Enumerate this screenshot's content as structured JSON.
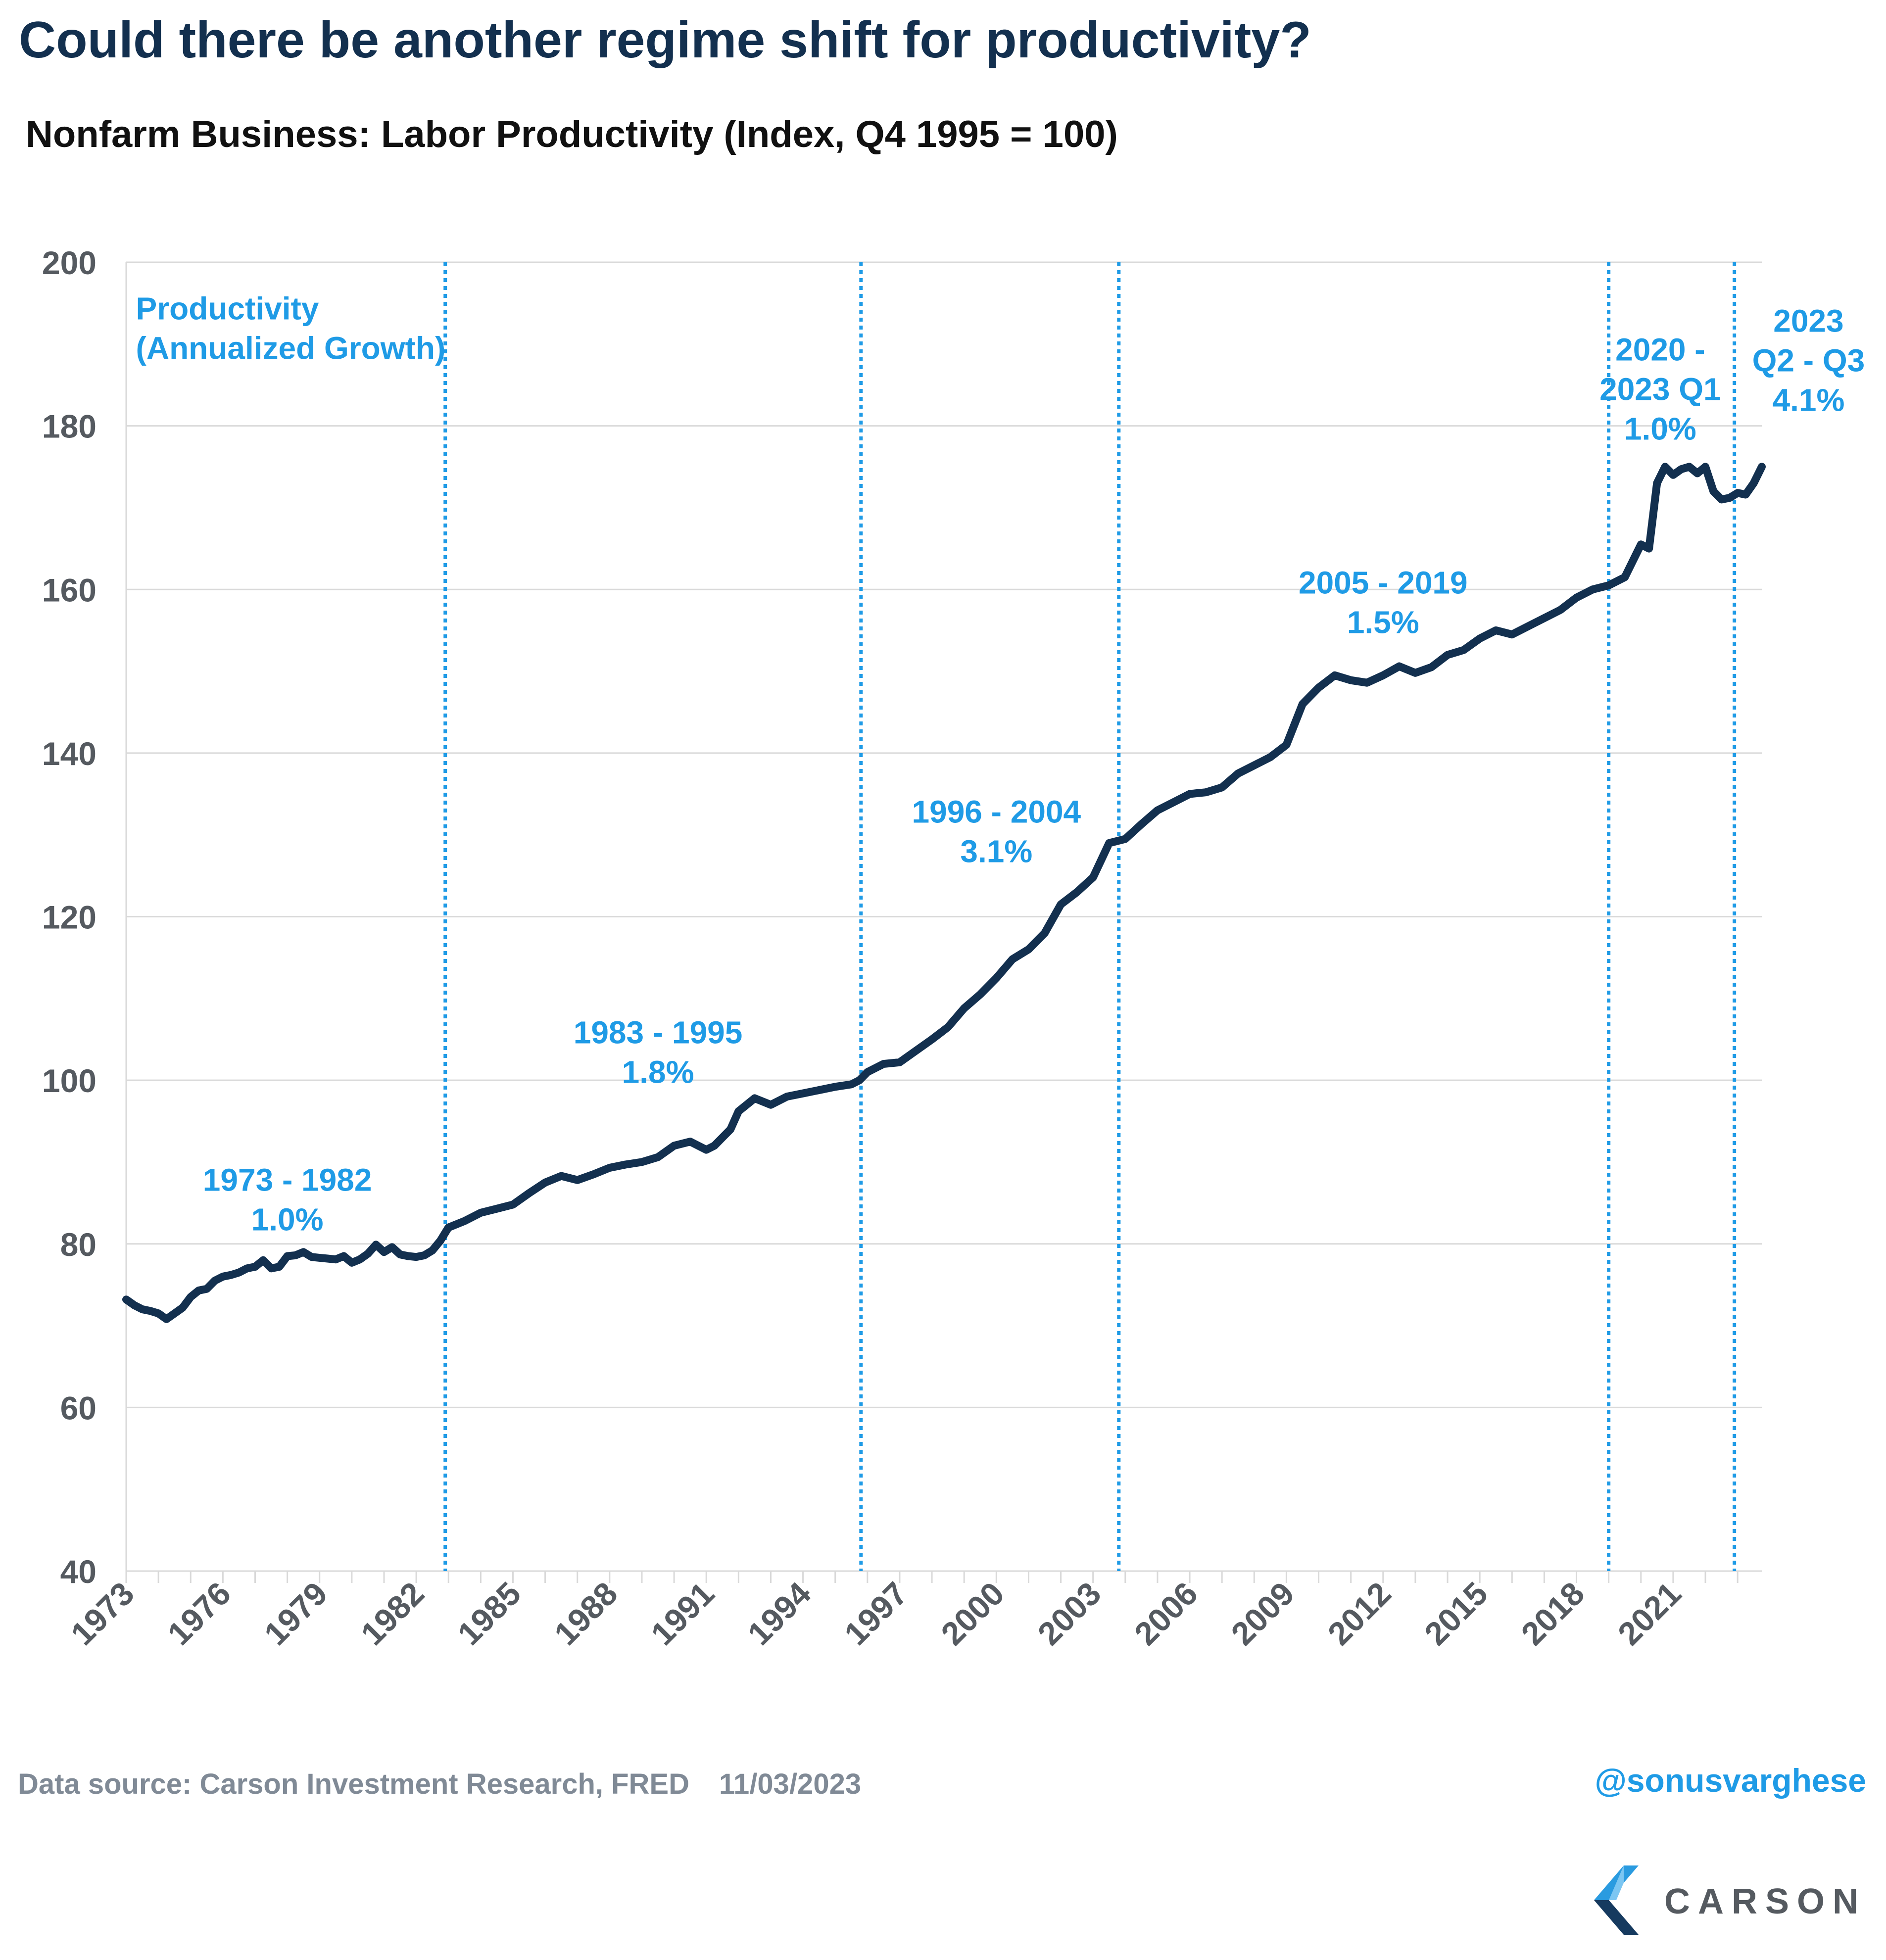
{
  "title": "Could there be another regime shift for productivity?",
  "subtitle": "Nonfarm Business: Labor Productivity (Index, Q4 1995 = 100)",
  "footer": {
    "source": "Data source: Carson Investment Research, FRED",
    "date": "11/03/2023",
    "handle": "@sonusvarghese"
  },
  "logo": {
    "text": "CARSON"
  },
  "colors": {
    "line": "#13304f",
    "accent": "#1f9be6",
    "grid": "#d9d9d9",
    "axis_text": "#555a60"
  },
  "chart_data": {
    "type": "line",
    "title": "Nonfarm Business: Labor Productivity (Index, Q4 1995 = 100)",
    "xlim": [
      1973.0,
      2023.75
    ],
    "ylim": [
      40,
      200
    ],
    "yticks": [
      40,
      60,
      80,
      100,
      120,
      140,
      160,
      180,
      200
    ],
    "xticks": [
      1973,
      1976,
      1979,
      1982,
      1985,
      1988,
      1991,
      1994,
      1997,
      2000,
      2003,
      2006,
      2009,
      2012,
      2015,
      2018,
      2021
    ],
    "grid": "horizontal",
    "series": [
      {
        "x": [
          1973.0,
          1973.25,
          1973.5,
          1973.75,
          1974.0,
          1974.25,
          1974.5,
          1974.75,
          1975.0,
          1975.25,
          1975.5,
          1975.75,
          1976.0,
          1976.25,
          1976.5,
          1976.75,
          1977.0,
          1977.25,
          1977.5,
          1977.75,
          1978.0,
          1978.25,
          1978.5,
          1978.75,
          1979.0,
          1979.25,
          1979.5,
          1979.75,
          1980.0,
          1980.25,
          1980.5,
          1980.75,
          1981.0,
          1981.25,
          1981.5,
          1981.75,
          1982.0,
          1982.25,
          1982.5,
          1982.75,
          1983.0,
          1983.5,
          1984.0,
          1984.5,
          1985.0,
          1985.5,
          1986.0,
          1986.5,
          1987.0,
          1987.5,
          1988.0,
          1988.5,
          1989.0,
          1989.5,
          1990.0,
          1990.5,
          1991.0,
          1991.25,
          1991.5,
          1991.75,
          1992.0,
          1992.5,
          1993.0,
          1993.5,
          1994.0,
          1994.5,
          1995.0,
          1995.5,
          1995.75,
          1996.0,
          1996.5,
          1997.0,
          1997.5,
          1998.0,
          1998.5,
          1999.0,
          1999.5,
          2000.0,
          2000.5,
          2001.0,
          2001.5,
          2002.0,
          2002.5,
          2003.0,
          2003.5,
          2004.0,
          2004.5,
          2005.0,
          2005.5,
          2006.0,
          2006.5,
          2007.0,
          2007.5,
          2008.0,
          2008.5,
          2009.0,
          2009.5,
          2010.0,
          2010.5,
          2011.0,
          2011.5,
          2012.0,
          2012.5,
          2013.0,
          2013.5,
          2014.0,
          2014.5,
          2015.0,
          2015.5,
          2016.0,
          2016.5,
          2017.0,
          2017.5,
          2018.0,
          2018.5,
          2019.0,
          2019.5,
          2019.75,
          2020.0,
          2020.25,
          2020.5,
          2020.75,
          2021.0,
          2021.25,
          2021.5,
          2021.75,
          2022.0,
          2022.25,
          2022.5,
          2022.75,
          2023.0,
          2023.25,
          2023.5,
          2023.75
        ],
        "values": [
          73.2,
          72.5,
          72.0,
          71.8,
          71.5,
          70.8,
          71.5,
          72.2,
          73.5,
          74.3,
          74.5,
          75.5,
          76.0,
          76.2,
          76.5,
          77.0,
          77.2,
          78.0,
          77.0,
          77.2,
          78.5,
          78.6,
          79.0,
          78.4,
          78.3,
          78.2,
          78.1,
          78.5,
          77.7,
          78.1,
          78.8,
          79.9,
          79.0,
          79.6,
          78.7,
          78.5,
          78.4,
          78.6,
          79.2,
          80.4,
          82.0,
          82.8,
          83.8,
          84.3,
          84.8,
          86.2,
          87.5,
          88.3,
          87.8,
          88.5,
          89.3,
          89.7,
          90.0,
          90.6,
          92.0,
          92.5,
          91.5,
          92.0,
          93.0,
          94.0,
          96.2,
          97.8,
          97.0,
          98.0,
          98.4,
          98.8,
          99.2,
          99.5,
          100.0,
          101.0,
          102.0,
          102.2,
          103.6,
          105.0,
          106.5,
          108.8,
          110.5,
          112.5,
          114.8,
          116.0,
          118.0,
          121.5,
          123.0,
          124.8,
          129.0,
          129.5,
          131.3,
          133.0,
          134.0,
          135.0,
          135.2,
          135.8,
          137.5,
          138.5,
          139.5,
          141.0,
          146.0,
          148.0,
          149.5,
          148.9,
          148.6,
          149.5,
          150.6,
          149.8,
          150.5,
          152.0,
          152.6,
          154.0,
          155.0,
          154.5,
          155.5,
          156.5,
          157.5,
          159.0,
          160.0,
          160.5,
          161.5,
          163.5,
          165.5,
          165.0,
          173.0,
          175.0,
          174.0,
          174.7,
          175.0,
          174.2,
          175.0,
          172.0,
          171.0,
          171.2,
          171.8,
          171.6,
          173.0,
          175.0
        ]
      }
    ],
    "regime_lines_x": [
      1982.9,
      1995.8,
      2003.8,
      2019.0,
      2022.9
    ],
    "annotations": [
      {
        "lines": [
          "Productivity",
          "(Annualized Growth)"
        ],
        "x": 1973.3,
        "y": 193,
        "anchor": "start"
      },
      {
        "lines": [
          "1973 - 1982",
          "1.0%"
        ],
        "x": 1978.0,
        "y": 86.5,
        "anchor": "middle"
      },
      {
        "lines": [
          "1983 - 1995",
          "1.8%"
        ],
        "x": 1989.5,
        "y": 104.5,
        "anchor": "middle"
      },
      {
        "lines": [
          "1996 - 2004",
          "3.1%"
        ],
        "x": 2000.0,
        "y": 131.5,
        "anchor": "middle"
      },
      {
        "lines": [
          "2005 - 2019",
          "1.5%"
        ],
        "x": 2012.0,
        "y": 159.5,
        "anchor": "middle"
      },
      {
        "lines": [
          "2020 -",
          "2023 Q1",
          "1.0%"
        ],
        "x": 2020.6,
        "y": 188.0,
        "anchor": "middle"
      },
      {
        "lines": [
          "2023",
          "Q2 - Q3",
          "4.1%"
        ],
        "x": 2025.2,
        "y": 191.5,
        "anchor": "middle"
      }
    ]
  }
}
